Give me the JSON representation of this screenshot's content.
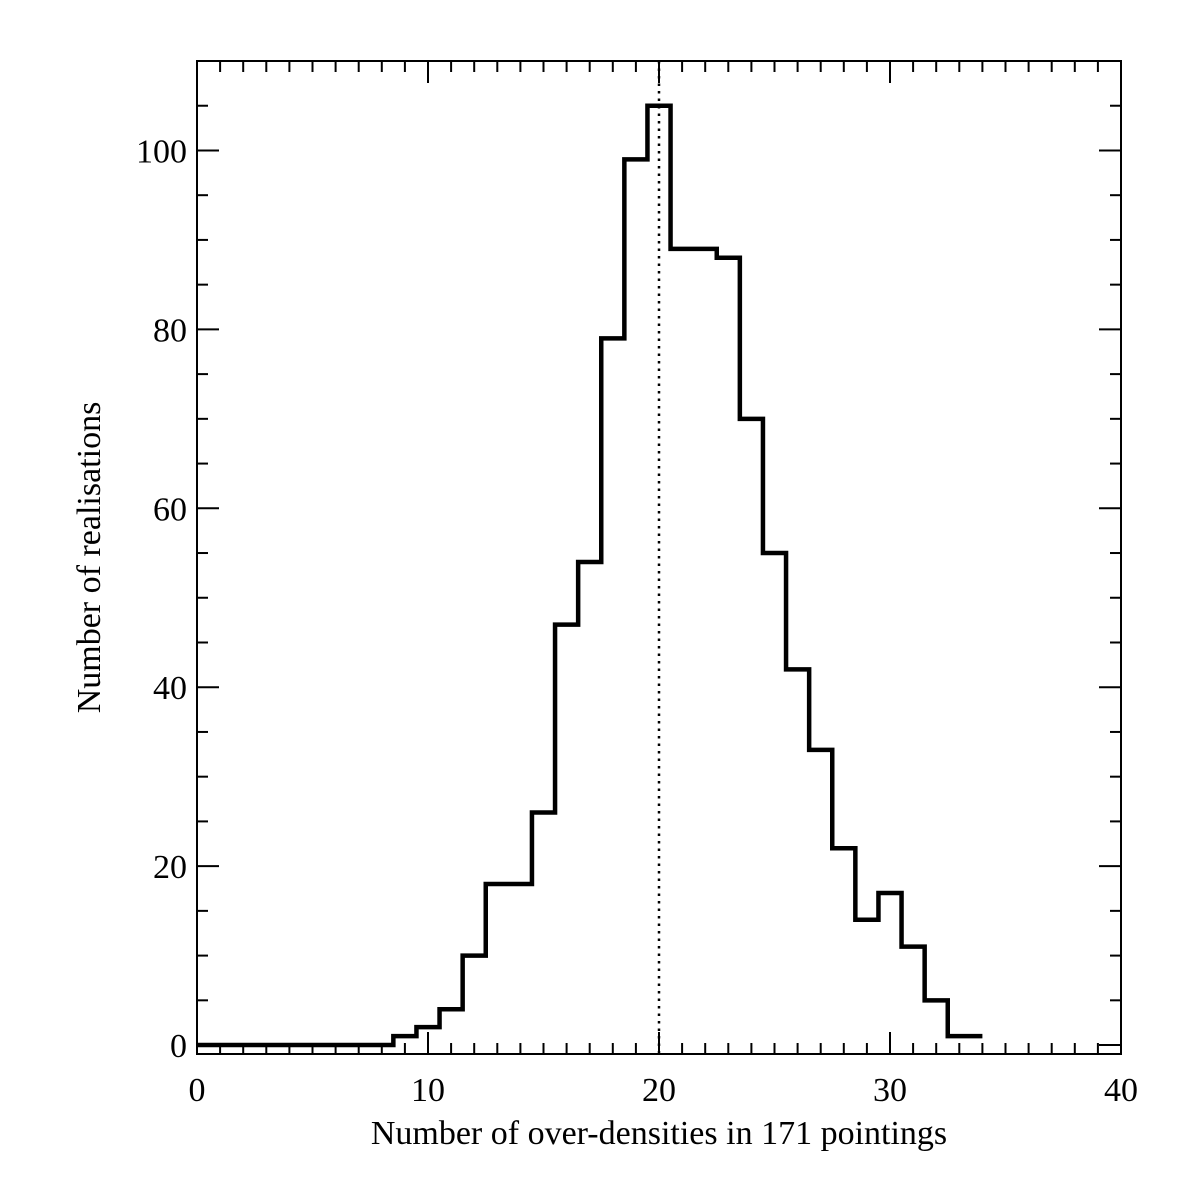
{
  "chart_data": {
    "type": "histogram",
    "title": "",
    "xlabel": "Number of over-densities in 171 pointings",
    "ylabel": "Number of realisations",
    "xlim": [
      0,
      40
    ],
    "ylim": [
      -1,
      110
    ],
    "x_major_ticks": [
      0,
      10,
      20,
      30,
      40
    ],
    "x_minor_step": 1,
    "y_major_ticks": [
      0,
      20,
      40,
      60,
      80,
      100
    ],
    "y_minor_step": 5,
    "tick_labels_x": [
      "0",
      "10",
      "20",
      "30",
      "40"
    ],
    "tick_labels_y": [
      "0",
      "20",
      "40",
      "60",
      "80",
      "100"
    ],
    "bin_edges": [
      0,
      8.5,
      9.5,
      10.5,
      11.5,
      12.5,
      13.5,
      14.5,
      15.5,
      16.5,
      17.5,
      18.5,
      19.5,
      20.5,
      21.5,
      22.5,
      23.5,
      24.5,
      25.5,
      26.5,
      27.5,
      28.5,
      29.5,
      30.5,
      31.5,
      32.5,
      34
    ],
    "counts": [
      0,
      1,
      2,
      4,
      10,
      18,
      18,
      26,
      47,
      54,
      79,
      99,
      105,
      89,
      89,
      88,
      70,
      55,
      42,
      33,
      22,
      14,
      17,
      11,
      5,
      1
    ],
    "reference_line": {
      "x": 20,
      "style": "dotted"
    },
    "grid": false,
    "legend": "none",
    "line_color": "#000000"
  }
}
